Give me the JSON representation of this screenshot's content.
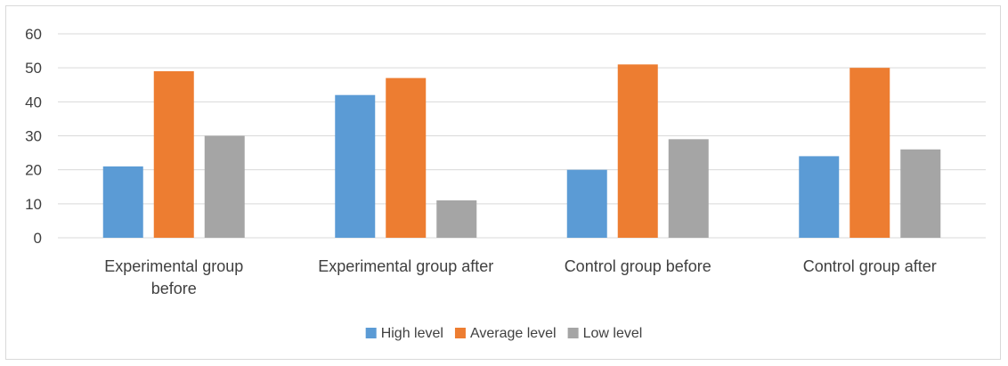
{
  "chart_data": {
    "type": "bar",
    "categories": [
      [
        "Experimental group",
        "before"
      ],
      [
        "Experimental group after"
      ],
      [
        "Control group before"
      ],
      [
        "Control group after"
      ]
    ],
    "series": [
      {
        "name": "High level",
        "values": [
          21,
          42,
          20,
          24
        ],
        "color": "#5b9bd5"
      },
      {
        "name": "Average level",
        "values": [
          49,
          47,
          51,
          50
        ],
        "color": "#ed7d31"
      },
      {
        "name": "Low level",
        "values": [
          30,
          11,
          29,
          26
        ],
        "color": "#a5a5a5"
      }
    ],
    "ylim": [
      0,
      60
    ],
    "yticks": [
      0,
      10,
      20,
      30,
      40,
      50,
      60
    ],
    "grid": true,
    "legend_position": "bottom",
    "title": "",
    "xlabel": "",
    "ylabel": ""
  }
}
